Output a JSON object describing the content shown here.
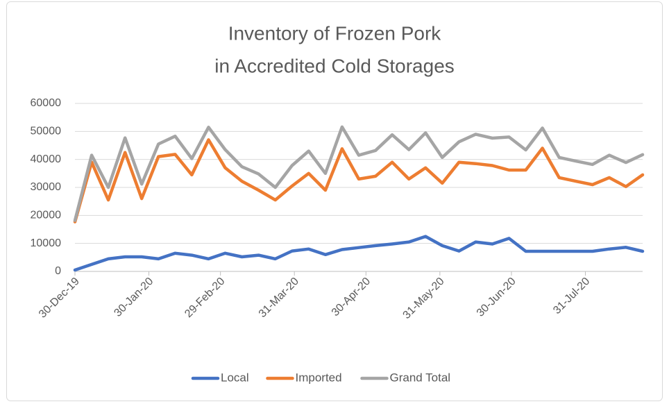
{
  "chart_data": {
    "type": "line",
    "title": [
      "Inventory of Frozen Pork",
      "in Accredited Cold Storages"
    ],
    "x": [
      "2019-12-30",
      "2020-01-06",
      "2020-01-13",
      "2020-01-20",
      "2020-01-27",
      "2020-02-03",
      "2020-02-10",
      "2020-02-17",
      "2020-02-24",
      "2020-03-02",
      "2020-03-09",
      "2020-03-16",
      "2020-03-23",
      "2020-03-30",
      "2020-04-06",
      "2020-04-13",
      "2020-04-20",
      "2020-04-27",
      "2020-05-04",
      "2020-05-11",
      "2020-05-18",
      "2020-05-25",
      "2020-06-01",
      "2020-06-08",
      "2020-06-15",
      "2020-06-22",
      "2020-06-29",
      "2020-07-06",
      "2020-07-13",
      "2020-07-20",
      "2020-07-27",
      "2020-08-03",
      "2020-08-10",
      "2020-08-17",
      "2020-08-24"
    ],
    "series": [
      {
        "name": "Local",
        "color": "#4472c4",
        "values": [
          500,
          2500,
          4500,
          5200,
          5200,
          4500,
          6500,
          5800,
          4500,
          6500,
          5200,
          5800,
          4500,
          7300,
          8000,
          6000,
          7800,
          8500,
          9200,
          9800,
          10500,
          12500,
          9200,
          7300,
          10500,
          9800,
          11800,
          7200,
          7200,
          7200,
          7200,
          7200,
          8000,
          8600,
          7200
        ]
      },
      {
        "name": "Imported",
        "color": "#ed7d31",
        "values": [
          17700,
          39000,
          25500,
          42500,
          26000,
          41000,
          41800,
          34500,
          47000,
          37000,
          32200,
          29000,
          25500,
          30500,
          35000,
          29000,
          43800,
          33000,
          34000,
          39000,
          33000,
          37000,
          31500,
          39000,
          38500,
          37800,
          36200,
          36200,
          44000,
          33500,
          32200,
          31000,
          33500,
          30300,
          34500
        ]
      },
      {
        "name": "Grand Total",
        "color": "#a5a5a5",
        "values": [
          18200,
          41500,
          30000,
          47700,
          31200,
          45500,
          48300,
          40300,
          51500,
          43500,
          37400,
          34800,
          30000,
          37800,
          43000,
          35000,
          51600,
          41500,
          43200,
          48800,
          43500,
          49500,
          40700,
          46300,
          49000,
          47600,
          48000,
          43400,
          51200,
          40700,
          39400,
          38200,
          41500,
          38900,
          41700
        ]
      }
    ],
    "xlim": [
      "2019-12-30",
      "2020-08-24"
    ],
    "xticks": [
      {
        "value": "2019-12-30",
        "label": "30-Dec-19"
      },
      {
        "value": "2020-01-30",
        "label": "30-Jan-20"
      },
      {
        "value": "2020-02-29",
        "label": "29-Feb-20"
      },
      {
        "value": "2020-03-31",
        "label": "31-Mar-20"
      },
      {
        "value": "2020-04-30",
        "label": "30-Apr-20"
      },
      {
        "value": "2020-05-31",
        "label": "31-May-20"
      },
      {
        "value": "2020-06-30",
        "label": "30-Jun-20"
      },
      {
        "value": "2020-07-31",
        "label": "31-Jul-20"
      }
    ],
    "ylim": [
      0,
      60000
    ],
    "yticks": [
      0,
      10000,
      20000,
      30000,
      40000,
      50000,
      60000
    ],
    "grid": true,
    "legend": "bottom"
  }
}
